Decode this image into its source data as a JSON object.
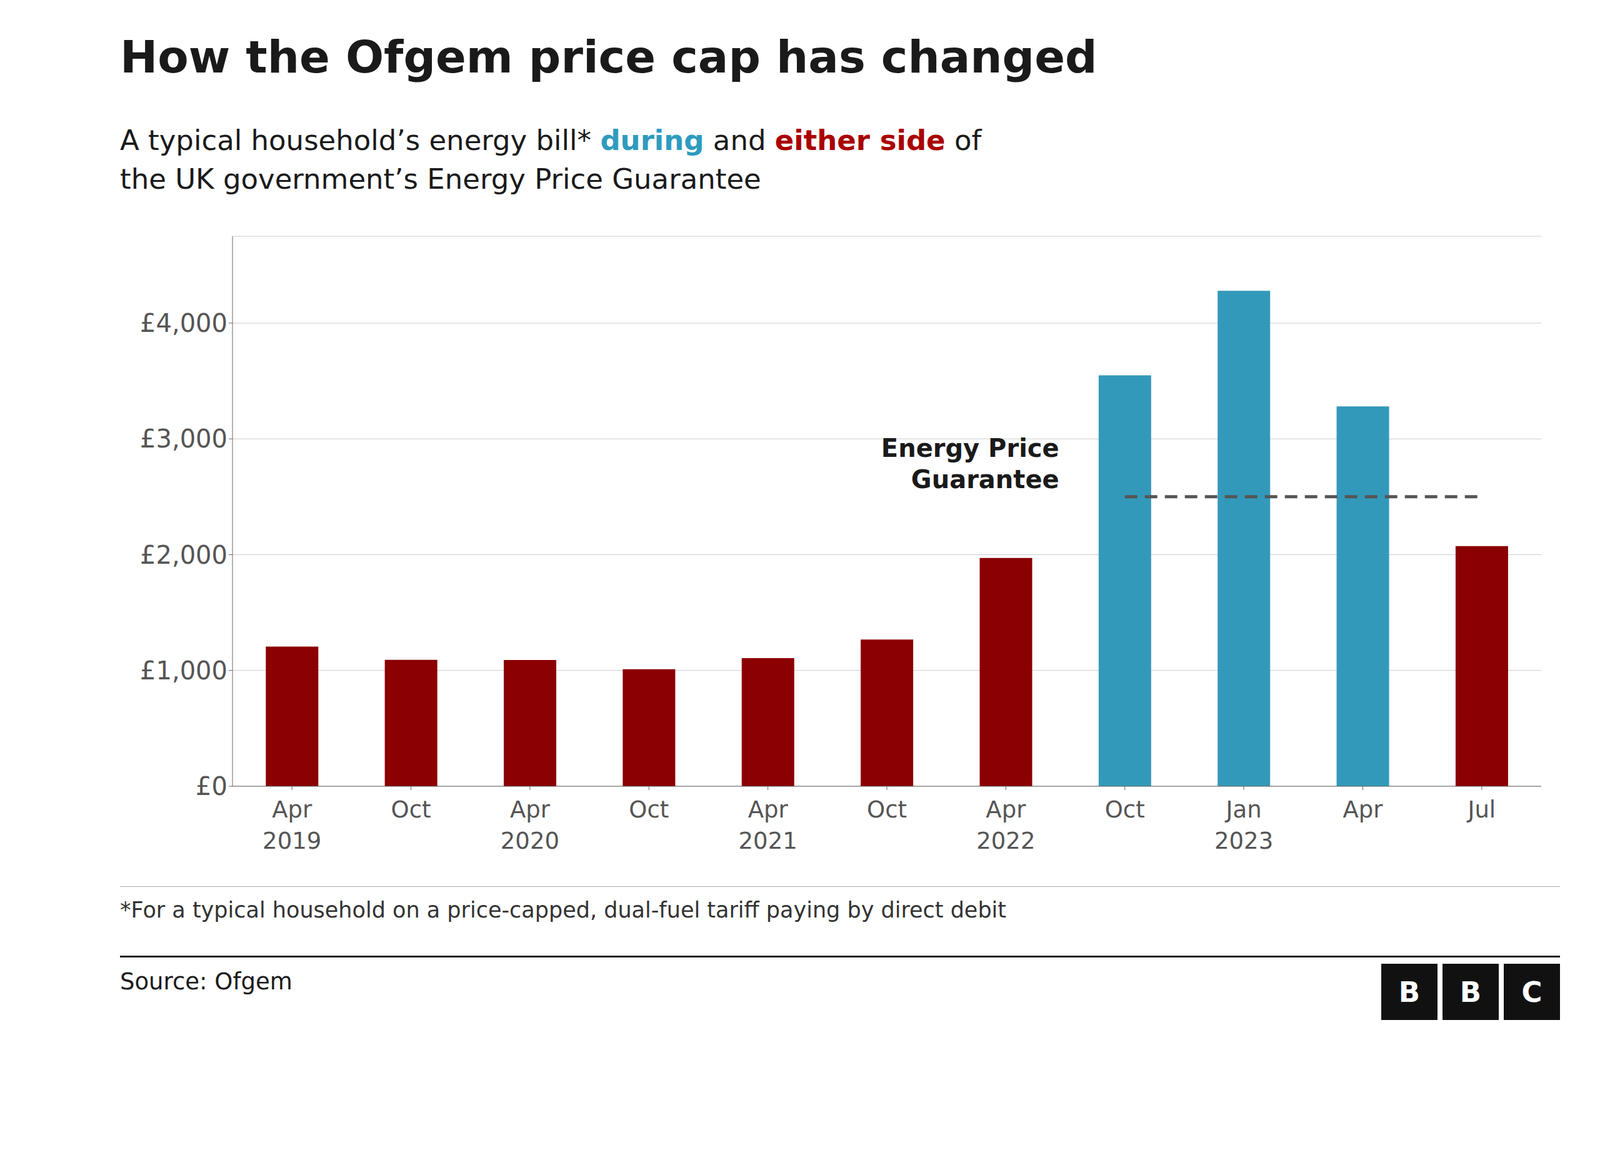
{
  "chart_data": {
    "type": "bar",
    "title": "How the Ofgem price cap has changed",
    "subtitle": [
      [
        {
          "text": "A typical household’s energy bill* "
        },
        {
          "text": "during",
          "color": "#2e9bbf"
        },
        {
          "text": " and "
        },
        {
          "text": "either side",
          "color": "#aa0000"
        },
        {
          "text": " of"
        }
      ],
      [
        {
          "text": "the UK government’s Energy Price Guarantee"
        }
      ]
    ],
    "categories": [
      "Apr\n2019",
      "Oct",
      "Apr\n2020",
      "Oct",
      "Apr\n2021",
      "Oct",
      "Apr\n2022",
      "Oct",
      "Jan\n2023",
      "Apr",
      "Jul"
    ],
    "values": [
      1207,
      1092,
      1091,
      1011,
      1106,
      1267,
      1971,
      3549,
      4279,
      3280,
      2074
    ],
    "colors": [
      "#8b0000",
      "#8b0000",
      "#8b0000",
      "#8b0000",
      "#8b0000",
      "#8b0000",
      "#8b0000",
      "#3399bb",
      "#3399bb",
      "#3399bb",
      "#8b0000"
    ],
    "ylim": [
      0,
      4750
    ],
    "yticks": [
      {
        "value": 0,
        "label": "£0"
      },
      {
        "value": 1000,
        "label": "£1,000"
      },
      {
        "value": 2000,
        "label": "£2,000"
      },
      {
        "value": 3000,
        "label": "£3,000"
      },
      {
        "value": 4000,
        "label": "£4,000"
      }
    ],
    "grid": true,
    "annotations": [
      {
        "type": "line",
        "line_style": "dashed",
        "text": "Energy Price\nGuarantee",
        "values": [
          null,
          null,
          null,
          null,
          null,
          null,
          null,
          2500,
          2500,
          2500,
          2500
        ]
      }
    ],
    "footnote": "*For a typical household on a price-capped, dual-fuel tariff paying by direct debit",
    "source": "Source: Ofgem",
    "logo": "BBC"
  }
}
